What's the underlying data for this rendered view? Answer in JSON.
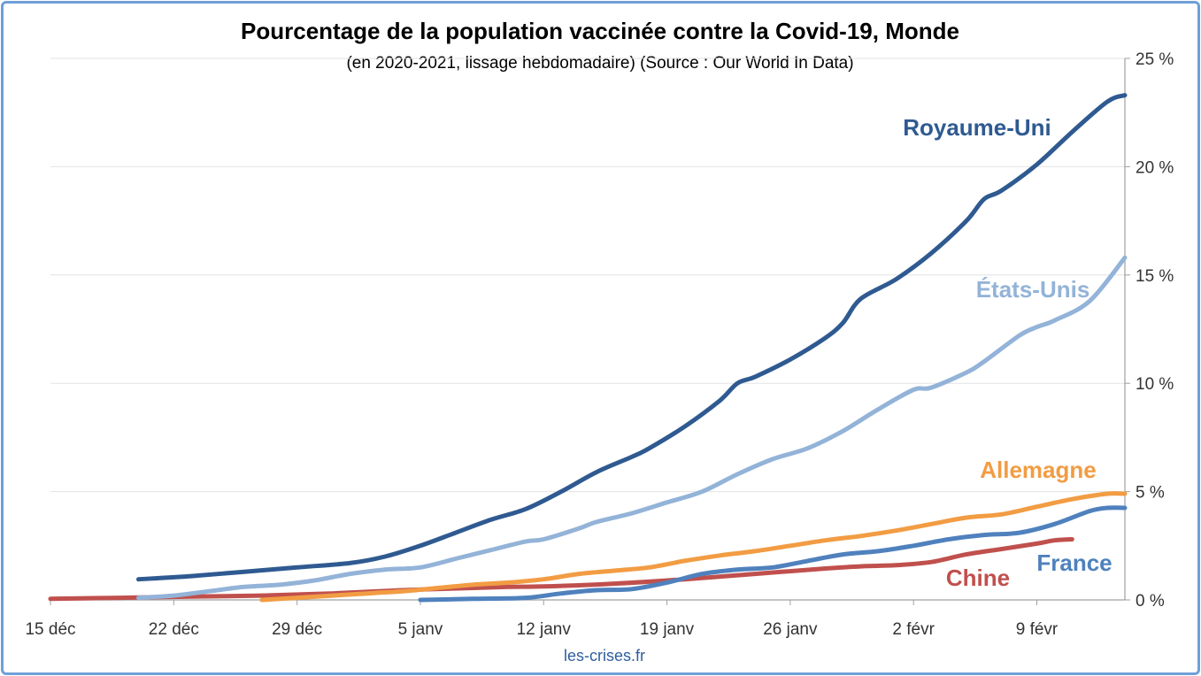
{
  "chart_data": {
    "type": "line",
    "title": "Pourcentage de la population vaccinée contre la Covid-19, Monde",
    "subtitle": "(en 2020-2021, lissage hebdomadaire) (Source : Our World In Data)",
    "x_ticks": [
      {
        "day": 0,
        "label": "15 déc"
      },
      {
        "day": 7,
        "label": "22 déc"
      },
      {
        "day": 14,
        "label": "29 déc"
      },
      {
        "day": 21,
        "label": "5 janv"
      },
      {
        "day": 28,
        "label": "12 janv"
      },
      {
        "day": 35,
        "label": "19 janv"
      },
      {
        "day": 42,
        "label": "26 janv"
      },
      {
        "day": 49,
        "label": "2 févr"
      },
      {
        "day": 56,
        "label": "9 févr"
      }
    ],
    "xlim": [
      0,
      61
    ],
    "ylim": [
      0,
      25
    ],
    "y_ticks": [
      {
        "value": 0,
        "label": "0 %"
      },
      {
        "value": 5,
        "label": "5 %"
      },
      {
        "value": 10,
        "label": "10 %"
      },
      {
        "value": 15,
        "label": "15 %"
      },
      {
        "value": 20,
        "label": "20 %"
      },
      {
        "value": 25,
        "label": "25 %"
      }
    ],
    "y_axis_side": "right",
    "grid": true,
    "series": [
      {
        "name": "Royaume-Uni",
        "color": "#2f5a91",
        "points": [
          [
            5,
            0.95
          ],
          [
            8,
            1.1
          ],
          [
            11,
            1.3
          ],
          [
            14,
            1.5
          ],
          [
            17,
            1.7
          ],
          [
            19,
            2.0
          ],
          [
            21,
            2.5
          ],
          [
            23,
            3.1
          ],
          [
            25,
            3.7
          ],
          [
            27,
            4.2
          ],
          [
            29,
            5.0
          ],
          [
            31,
            5.9
          ],
          [
            33,
            6.6
          ],
          [
            34,
            7.0
          ],
          [
            36,
            8.0
          ],
          [
            38,
            9.2
          ],
          [
            39,
            10.0
          ],
          [
            40,
            10.3
          ],
          [
            42,
            11.1
          ],
          [
            44,
            12.1
          ],
          [
            45,
            12.8
          ],
          [
            46,
            13.9
          ],
          [
            48,
            14.8
          ],
          [
            50,
            16.0
          ],
          [
            52,
            17.5
          ],
          [
            53,
            18.5
          ],
          [
            54,
            18.9
          ],
          [
            56,
            20.1
          ],
          [
            58,
            21.6
          ],
          [
            60,
            23.0
          ],
          [
            61,
            23.3
          ]
        ]
      },
      {
        "name": "États-Unis",
        "color": "#93b3d8",
        "points": [
          [
            5,
            0.1
          ],
          [
            7,
            0.2
          ],
          [
            9,
            0.4
          ],
          [
            11,
            0.6
          ],
          [
            13,
            0.7
          ],
          [
            15,
            0.9
          ],
          [
            17,
            1.2
          ],
          [
            19,
            1.4
          ],
          [
            21,
            1.5
          ],
          [
            23,
            1.9
          ],
          [
            25,
            2.3
          ],
          [
            27,
            2.7
          ],
          [
            28,
            2.8
          ],
          [
            30,
            3.3
          ],
          [
            31,
            3.6
          ],
          [
            33,
            4.0
          ],
          [
            35,
            4.5
          ],
          [
            37,
            5.0
          ],
          [
            39,
            5.8
          ],
          [
            41,
            6.5
          ],
          [
            43,
            7.0
          ],
          [
            45,
            7.8
          ],
          [
            47,
            8.8
          ],
          [
            49,
            9.7
          ],
          [
            50,
            9.8
          ],
          [
            52,
            10.5
          ],
          [
            53,
            11.0
          ],
          [
            55,
            12.2
          ],
          [
            56,
            12.6
          ],
          [
            57,
            12.9
          ],
          [
            59,
            13.8
          ],
          [
            61,
            15.8
          ]
        ]
      },
      {
        "name": "Allemagne",
        "color": "#f29c43",
        "points": [
          [
            12,
            0.0
          ],
          [
            14,
            0.1
          ],
          [
            16,
            0.2
          ],
          [
            18,
            0.3
          ],
          [
            20,
            0.4
          ],
          [
            22,
            0.55
          ],
          [
            24,
            0.7
          ],
          [
            26,
            0.8
          ],
          [
            28,
            0.95
          ],
          [
            30,
            1.2
          ],
          [
            32,
            1.35
          ],
          [
            34,
            1.5
          ],
          [
            36,
            1.8
          ],
          [
            38,
            2.05
          ],
          [
            40,
            2.25
          ],
          [
            42,
            2.5
          ],
          [
            44,
            2.75
          ],
          [
            46,
            2.95
          ],
          [
            48,
            3.2
          ],
          [
            50,
            3.5
          ],
          [
            52,
            3.8
          ],
          [
            54,
            3.95
          ],
          [
            56,
            4.3
          ],
          [
            58,
            4.65
          ],
          [
            60,
            4.9
          ],
          [
            61,
            4.9
          ]
        ]
      },
      {
        "name": "France",
        "color": "#4f81bd",
        "points": [
          [
            21,
            0.0
          ],
          [
            24,
            0.05
          ],
          [
            27,
            0.1
          ],
          [
            29,
            0.3
          ],
          [
            31,
            0.45
          ],
          [
            33,
            0.5
          ],
          [
            35,
            0.8
          ],
          [
            37,
            1.2
          ],
          [
            39,
            1.4
          ],
          [
            41,
            1.5
          ],
          [
            43,
            1.8
          ],
          [
            45,
            2.1
          ],
          [
            47,
            2.25
          ],
          [
            49,
            2.5
          ],
          [
            51,
            2.8
          ],
          [
            53,
            3.0
          ],
          [
            55,
            3.1
          ],
          [
            57,
            3.5
          ],
          [
            59,
            4.1
          ],
          [
            60,
            4.25
          ],
          [
            61,
            4.25
          ]
        ]
      },
      {
        "name": "Chine",
        "color": "#c0504d",
        "points": [
          [
            0,
            0.05
          ],
          [
            4,
            0.1
          ],
          [
            8,
            0.15
          ],
          [
            12,
            0.2
          ],
          [
            16,
            0.3
          ],
          [
            20,
            0.45
          ],
          [
            24,
            0.55
          ],
          [
            26,
            0.6
          ],
          [
            28,
            0.62
          ],
          [
            32,
            0.75
          ],
          [
            36,
            0.95
          ],
          [
            40,
            1.2
          ],
          [
            44,
            1.45
          ],
          [
            46,
            1.55
          ],
          [
            48,
            1.6
          ],
          [
            50,
            1.75
          ],
          [
            52,
            2.1
          ],
          [
            54,
            2.35
          ],
          [
            56,
            2.6
          ],
          [
            57,
            2.75
          ],
          [
            58,
            2.8
          ]
        ]
      }
    ],
    "series_label_positions": [
      "near-end-above",
      "near-end-above",
      "near-end-above",
      "near-end-below",
      "near-end-below"
    ],
    "source_note": "les-crises.fr"
  }
}
